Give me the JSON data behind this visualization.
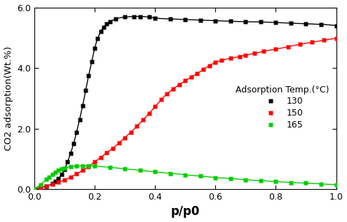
{
  "title": "",
  "xlabel": "p/p0",
  "ylabel": "CO2 adsorption(Wt.%)",
  "xlim": [
    0.0,
    1.0
  ],
  "ylim": [
    0.0,
    6.0
  ],
  "xticks": [
    0.0,
    0.2,
    0.4,
    0.6,
    0.8,
    1.0
  ],
  "yticks": [
    0.0,
    2.0,
    4.0,
    6.0
  ],
  "legend_title": "Adsorption Temp.(°C)",
  "series": [
    {
      "label": "130",
      "color": "#000000",
      "x": [
        0.0,
        0.02,
        0.04,
        0.06,
        0.07,
        0.08,
        0.09,
        0.1,
        0.11,
        0.12,
        0.13,
        0.14,
        0.15,
        0.16,
        0.17,
        0.18,
        0.19,
        0.2,
        0.21,
        0.22,
        0.23,
        0.24,
        0.25,
        0.27,
        0.3,
        0.33,
        0.35,
        0.38,
        0.4,
        0.45,
        0.5,
        0.55,
        0.6,
        0.65,
        0.7,
        0.75,
        0.8,
        0.85,
        0.9,
        0.95,
        1.0
      ],
      "y": [
        0.0,
        0.05,
        0.1,
        0.18,
        0.25,
        0.35,
        0.48,
        0.65,
        0.9,
        1.18,
        1.5,
        1.88,
        2.3,
        2.75,
        3.25,
        3.75,
        4.2,
        4.65,
        4.98,
        5.2,
        5.35,
        5.45,
        5.52,
        5.62,
        5.68,
        5.7,
        5.7,
        5.68,
        5.65,
        5.62,
        5.6,
        5.58,
        5.56,
        5.54,
        5.53,
        5.52,
        5.5,
        5.48,
        5.46,
        5.44,
        5.4
      ]
    },
    {
      "label": "150",
      "color": "#ff0000",
      "x": [
        0.0,
        0.02,
        0.04,
        0.06,
        0.08,
        0.1,
        0.12,
        0.14,
        0.16,
        0.18,
        0.2,
        0.22,
        0.24,
        0.26,
        0.28,
        0.3,
        0.32,
        0.34,
        0.36,
        0.38,
        0.4,
        0.42,
        0.44,
        0.46,
        0.48,
        0.5,
        0.52,
        0.54,
        0.56,
        0.58,
        0.6,
        0.62,
        0.65,
        0.68,
        0.7,
        0.73,
        0.76,
        0.8,
        0.84,
        0.88,
        0.92,
        0.96,
        1.0
      ],
      "y": [
        0.0,
        0.05,
        0.1,
        0.16,
        0.23,
        0.3,
        0.4,
        0.5,
        0.62,
        0.75,
        0.9,
        1.05,
        1.2,
        1.35,
        1.52,
        1.7,
        1.88,
        2.08,
        2.28,
        2.5,
        2.72,
        2.95,
        3.15,
        3.3,
        3.45,
        3.58,
        3.7,
        3.82,
        3.95,
        4.08,
        4.18,
        4.25,
        4.32,
        4.38,
        4.42,
        4.48,
        4.55,
        4.62,
        4.7,
        4.78,
        4.85,
        4.92,
        4.98
      ]
    },
    {
      "label": "165",
      "color": "#00cc00",
      "x": [
        0.0,
        0.02,
        0.04,
        0.05,
        0.06,
        0.07,
        0.08,
        0.09,
        0.1,
        0.12,
        0.14,
        0.16,
        0.18,
        0.2,
        0.25,
        0.3,
        0.35,
        0.4,
        0.45,
        0.5,
        0.55,
        0.6,
        0.65,
        0.7,
        0.75,
        0.8,
        0.85,
        0.9,
        0.95,
        1.0
      ],
      "y": [
        0.0,
        0.15,
        0.32,
        0.4,
        0.48,
        0.55,
        0.62,
        0.67,
        0.7,
        0.74,
        0.76,
        0.77,
        0.77,
        0.76,
        0.72,
        0.67,
        0.62,
        0.57,
        0.52,
        0.47,
        0.43,
        0.38,
        0.35,
        0.31,
        0.28,
        0.25,
        0.22,
        0.2,
        0.17,
        0.15
      ]
    }
  ],
  "marker": "s",
  "markersize": 4.5,
  "linewidth": 1.0,
  "background_color": "#ffffff",
  "xlabel_fontsize": 12,
  "ylabel_fontsize": 9.5,
  "tick_fontsize": 9,
  "legend_fontsize": 9,
  "legend_title_fontsize": 9
}
